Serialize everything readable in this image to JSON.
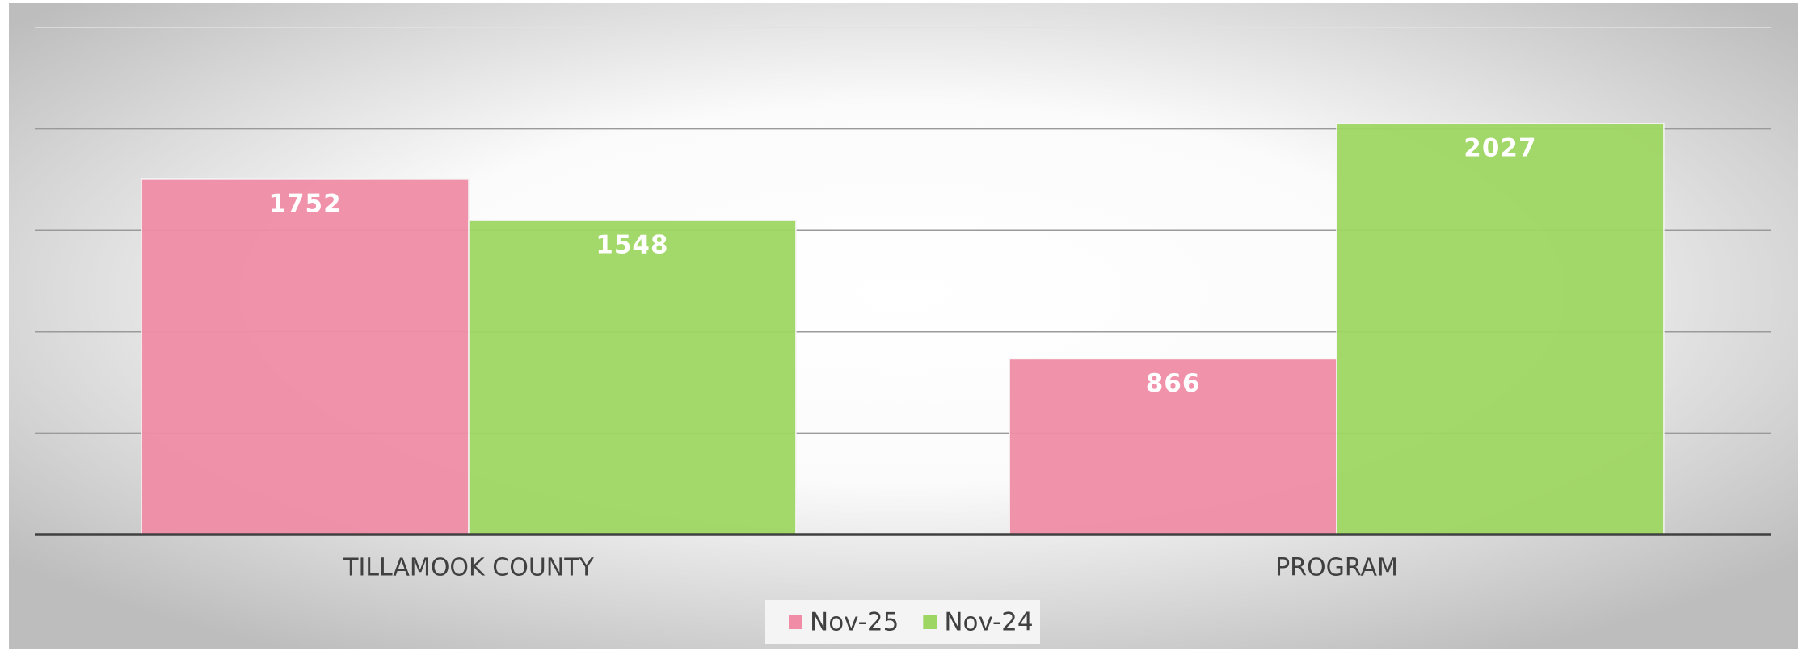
{
  "chart_data": {
    "type": "bar",
    "categories": [
      "TILLAMOOK COUNTY",
      "PROGRAM"
    ],
    "series": [
      {
        "name": "Nov-25",
        "color": "#f08ca6",
        "values": [
          1752,
          866
        ]
      },
      {
        "name": "Nov-24",
        "color": "#9ed663",
        "values": [
          1548,
          2027
        ]
      }
    ],
    "ylim": [
      0,
      2500
    ],
    "yticks": [
      0,
      500,
      1000,
      1500,
      2000,
      2500
    ],
    "grid": true,
    "show_ytick_labels": false,
    "legend": "bottom"
  }
}
